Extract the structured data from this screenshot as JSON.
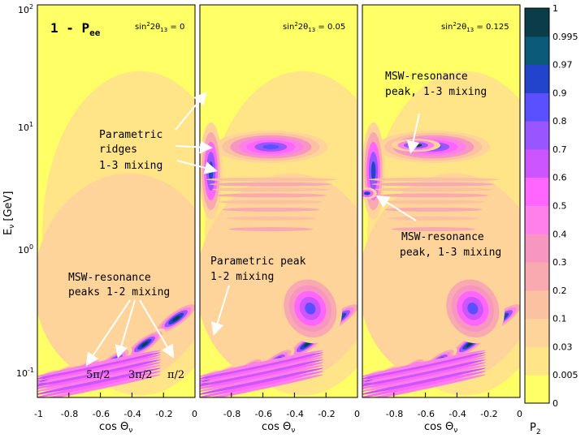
{
  "chart_data": {
    "type": "heatmap",
    "title": "1 - Pee",
    "ylabel": "Eν [GeV]",
    "yscale": "log",
    "ylim": [
      0.05,
      100
    ],
    "ytick_labels": [
      "10^-1",
      "10^0",
      "10^1",
      "10^2"
    ],
    "xlabel": "cos Θν",
    "xlim": [
      -1,
      0
    ],
    "panels": [
      {
        "label": "sin²2θ13 = 0",
        "x_ticks": [
          "-1",
          "-0.8",
          "-0.6",
          "-0.4",
          "-0.2",
          "0"
        ]
      },
      {
        "label": "sin²2θ13 = 0.05",
        "x_ticks": [
          "-0.8",
          "-0.6",
          "-0.4",
          "-0.2",
          "0"
        ]
      },
      {
        "label": "sin²2θ13 = 0.125",
        "x_ticks": [
          "-0.8",
          "-0.6",
          "-0.4",
          "-0.2",
          "0"
        ]
      }
    ],
    "colorbar": {
      "label": "P2",
      "levels": [
        "0",
        "0.005",
        "0.03",
        "0.1",
        "0.2",
        "0.3",
        "0.4",
        "0.5",
        "0.6",
        "0.7",
        "0.8",
        "0.9",
        "0.97",
        "0.995",
        "1"
      ],
      "colors": [
        "#ffff66",
        "#ffe488",
        "#ffd49a",
        "#fbc2a2",
        "#f9aab0",
        "#f796c0",
        "#ff80e8",
        "#ff66ff",
        "#cc55ff",
        "#9955ff",
        "#5a50ff",
        "#2244cc",
        "#0c5a7a",
        "#0a3c4a"
      ]
    },
    "annotations": [
      {
        "panel": 0,
        "text": [
          "Parametric",
          "ridges",
          "1-3 mixing"
        ]
      },
      {
        "panel": 0,
        "text": [
          "MSW-resonance",
          "peaks 1-2 mixing"
        ]
      },
      {
        "panel": 0,
        "text": [
          "5π/2",
          "3π/2",
          "π/2"
        ]
      },
      {
        "panel": 1,
        "text": [
          "Parametric peak",
          "1-2 mixing"
        ]
      },
      {
        "panel": 2,
        "text": [
          "MSW-resonance",
          "peak, 1-3 mixing"
        ]
      },
      {
        "panel": 2,
        "text": [
          "MSW-resonance",
          "peak, 1-3 mixing"
        ]
      }
    ]
  },
  "labels": {
    "title_main": "1 - P",
    "title_sub": "ee",
    "ylabel_main": "E",
    "ylabel_sub": "ν",
    "ylabel_unit": " [GeV]",
    "xlabel_main": "cos Θ",
    "xlabel_sub": "ν",
    "colorbar_main": "P",
    "colorbar_sub": "2",
    "param_ridges_1": "Parametric",
    "param_ridges_2": "ridges",
    "param_ridges_3": "1-3 mixing",
    "msw12_1": "MSW-resonance",
    "msw12_2": "peaks 1-2 mixing",
    "phase_5": "5π/2",
    "phase_3": "3π/2",
    "phase_1": "π/2",
    "param_peak_1": "Parametric peak",
    "param_peak_2": "1-2 mixing",
    "msw13_top_1": "MSW-resonance",
    "msw13_top_2": "peak, 1-3 mixing",
    "msw13_bot_1": "MSW-resonance",
    "msw13_bot_2": "peak, 1-3 mixing",
    "sin_prefix": "sin",
    "sin_sup": "2",
    "sin_mid": "2θ",
    "sin_sub": "13",
    "sin_val_0": " = 0",
    "sin_val_1": " = 0.05",
    "sin_val_2": " = 0.125",
    "ytick_base": "10",
    "ytick_exp_0": "-1",
    "ytick_exp_1": "0",
    "ytick_exp_2": "1",
    "ytick_exp_3": "2"
  }
}
